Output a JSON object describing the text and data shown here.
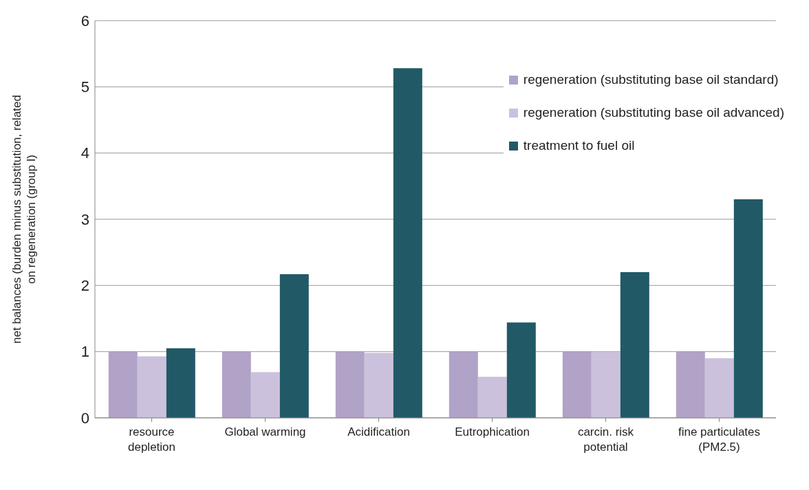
{
  "chart_data": {
    "type": "bar",
    "ylabel": "net balances (burden minus substitution, related on regeneration (group I)",
    "categories": [
      "resource depletion",
      "Global warming",
      "Acidification",
      "Eutrophication",
      "carcin. risk potential",
      "fine particulates (PM2.5)"
    ],
    "series": [
      {
        "name": "regeneration (substituting base oil standard)",
        "color": "#b1a2c8",
        "values": [
          1,
          1,
          1,
          1,
          1,
          1
        ]
      },
      {
        "name": "regeneration (substituting base oil advanced)",
        "color": "#ccc1dc",
        "values": [
          0.93,
          0.69,
          0.98,
          0.62,
          1,
          0.9
        ]
      },
      {
        "name": "treatment to fuel oil",
        "color": "#215967",
        "values": [
          1.05,
          2.17,
          5.28,
          1.44,
          2.2,
          3.3
        ]
      }
    ],
    "ylim": [
      0,
      6
    ],
    "yticks": [
      0,
      1,
      2,
      3,
      4,
      5,
      6
    ],
    "grid": "y",
    "legend": "top right"
  }
}
